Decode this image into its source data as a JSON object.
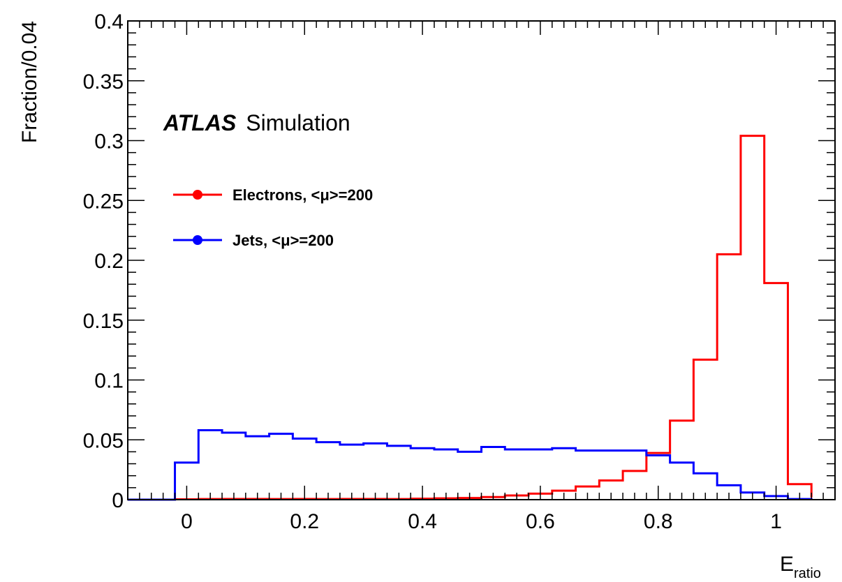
{
  "chart_data": {
    "type": "histogram",
    "xlabel": {
      "main": "E",
      "sub": "ratio"
    },
    "ylabel": "Fraction/0.04",
    "xlim": [
      -0.1,
      1.1
    ],
    "ylim": [
      0,
      0.4
    ],
    "x_ticks": [
      "0",
      "0.2",
      "0.4",
      "0.6",
      "0.8",
      "1"
    ],
    "y_ticks": [
      "0",
      "0.05",
      "0.1",
      "0.15",
      "0.2",
      "0.25",
      "0.3",
      "0.35",
      "0.4"
    ],
    "bin_edges": [
      -0.02,
      0.02,
      0.06,
      0.1,
      0.14,
      0.18,
      0.22,
      0.26,
      0.3,
      0.34,
      0.38,
      0.42,
      0.46,
      0.5,
      0.54,
      0.58,
      0.62,
      0.66,
      0.7,
      0.74,
      0.78,
      0.82,
      0.86,
      0.9,
      0.94,
      0.98,
      1.02,
      1.06
    ],
    "series": [
      {
        "name": "Electrons, <μ>=200",
        "color": "#ff0000",
        "values": [
          0.0003,
          0.0005,
          0.0006,
          0.0006,
          0.0005,
          0.0006,
          0.0005,
          0.0006,
          0.0006,
          0.0005,
          0.0008,
          0.0011,
          0.0014,
          0.0022,
          0.0035,
          0.005,
          0.0075,
          0.011,
          0.016,
          0.024,
          0.039,
          0.066,
          0.117,
          0.205,
          0.304,
          0.181,
          0.013,
          0.002
        ]
      },
      {
        "name": "Jets, <μ>=200",
        "color": "#0000ff",
        "values": [
          0.031,
          0.058,
          0.056,
          0.053,
          0.055,
          0.051,
          0.048,
          0.046,
          0.047,
          0.045,
          0.043,
          0.042,
          0.04,
          0.044,
          0.042,
          0.042,
          0.043,
          0.041,
          0.041,
          0.041,
          0.037,
          0.031,
          0.022,
          0.012,
          0.006,
          0.003,
          0.0005,
          0.0002
        ]
      }
    ],
    "annotation": {
      "bold": "ATLAS",
      "text": "Simulation"
    },
    "legend_placement": "top-left"
  }
}
